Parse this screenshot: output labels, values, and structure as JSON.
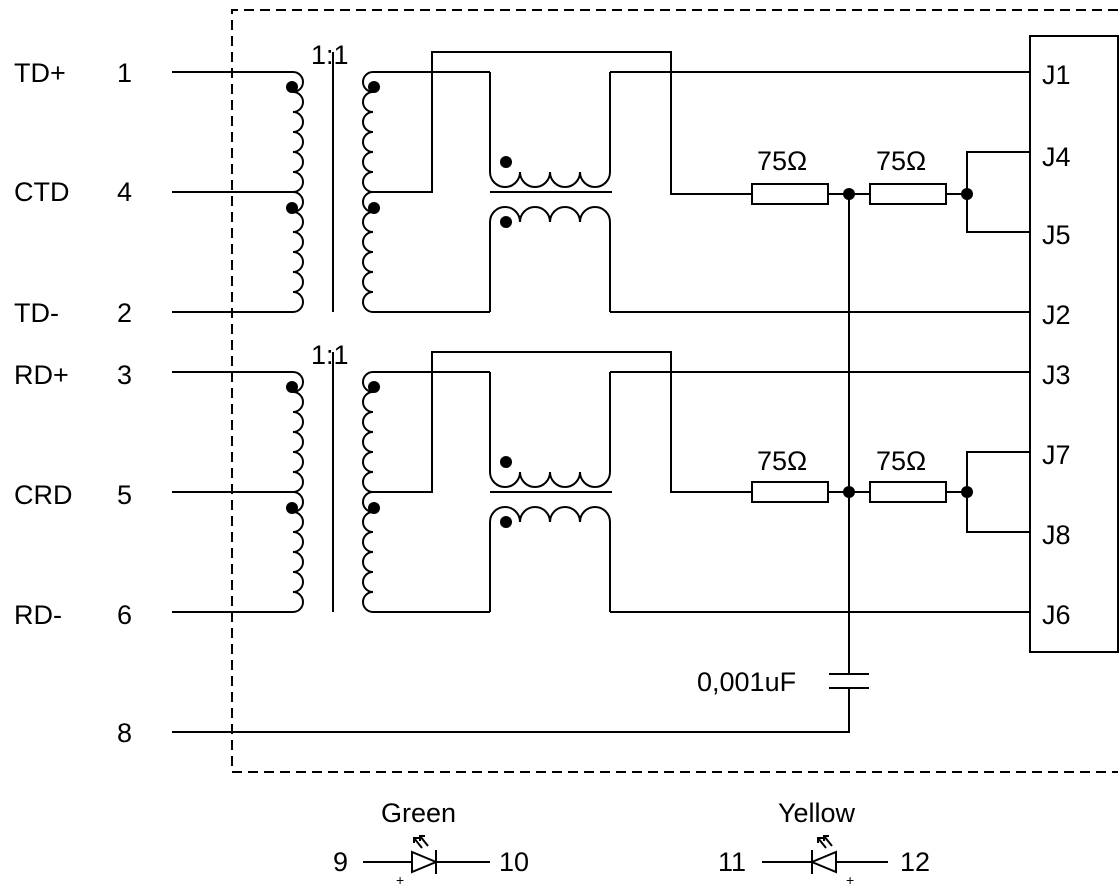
{
  "pins": {
    "td_plus": {
      "name": "TD+",
      "num": "1"
    },
    "ctd": {
      "name": "CTD",
      "num": "4"
    },
    "td_minus": {
      "name": "TD-",
      "num": "2"
    },
    "rd_plus": {
      "name": "RD+",
      "num": "3"
    },
    "crd": {
      "name": "CRD",
      "num": "5"
    },
    "rd_minus": {
      "name": "RD-",
      "num": "6"
    },
    "gnd": {
      "num": "8"
    }
  },
  "transformers": {
    "ratio_top": "1:1",
    "ratio_bottom": "1:1"
  },
  "resistors": {
    "r1": "75Ω",
    "r2": "75Ω",
    "r3": "75Ω",
    "r4": "75Ω"
  },
  "capacitor": {
    "value": "0,001uF"
  },
  "jack": {
    "j1": "J1",
    "j4": "J4",
    "j5": "J5",
    "j2": "J2",
    "j3": "J3",
    "j7": "J7",
    "j8": "J8",
    "j6": "J6"
  },
  "leds": {
    "green": {
      "label": "Green",
      "pin_a": "9",
      "pin_b": "10",
      "plus": "+"
    },
    "yellow": {
      "label": "Yellow",
      "pin_a": "11",
      "pin_b": "12",
      "plus": "+"
    }
  }
}
